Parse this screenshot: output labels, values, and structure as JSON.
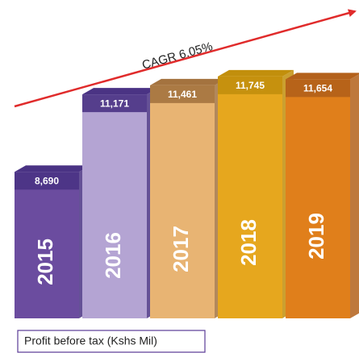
{
  "chart_data": {
    "type": "bar3d",
    "annotation": "CAGR 6.05%",
    "label": "Profit before tax (Kshs Mil)",
    "categories": [
      "2015",
      "2016",
      "2017",
      "2018",
      "2019"
    ],
    "values": [
      8690,
      11171,
      11461,
      11745,
      11654
    ],
    "value_labels": [
      "8,690",
      "11,171",
      "11,461",
      "11,745",
      "11,654"
    ],
    "colors": [
      "#6b4c9f",
      "#b4a4d3",
      "#e8b473",
      "#e6a71e",
      "#e07f1b"
    ],
    "top_colors": [
      "#4a3384",
      "#4a3384",
      "#a4733f",
      "#c28f0c",
      "#b3601a"
    ],
    "ylim": [
      4000,
      12000
    ],
    "arrow_color": "#e02b2b"
  }
}
